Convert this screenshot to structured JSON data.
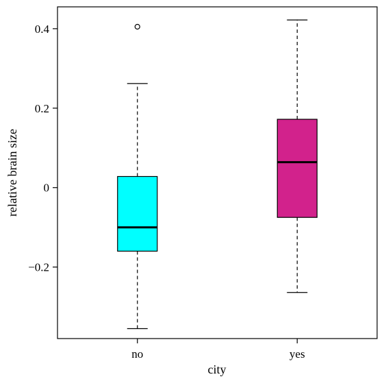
{
  "chart_data": {
    "type": "boxplot",
    "xlabel": "city",
    "ylabel": "relative brain size",
    "ylim": [
      -0.38,
      0.455
    ],
    "yticks": [
      {
        "value": 0.4,
        "label": "0.4"
      },
      {
        "value": 0.2,
        "label": "0.2"
      },
      {
        "value": 0,
        "label": "0"
      },
      {
        "value": -0.2,
        "label": "−0.2"
      }
    ],
    "grid": false,
    "boxes": [
      {
        "category": "no",
        "color": "#00ffff",
        "whisker_low": -0.355,
        "q1": -0.16,
        "median": -0.1,
        "q3": 0.028,
        "whisker_high": 0.262,
        "outliers": [
          0.405
        ]
      },
      {
        "category": "yes",
        "color": "#d2228c",
        "whisker_low": -0.264,
        "q1": -0.075,
        "median": 0.064,
        "q3": 0.172,
        "whisker_high": 0.422,
        "outliers": []
      }
    ]
  }
}
